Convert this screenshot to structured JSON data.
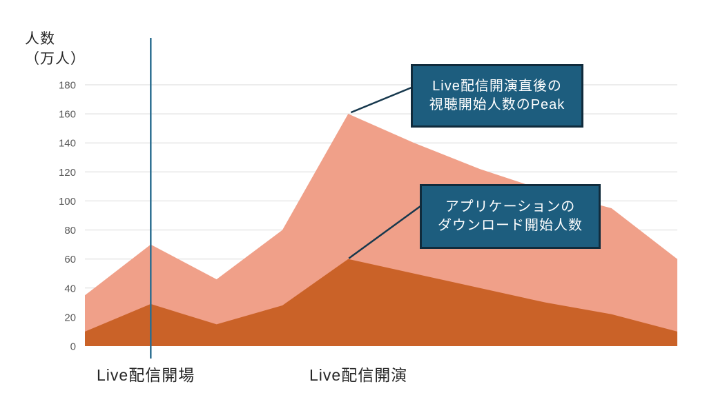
{
  "y_axis": {
    "title_line1": "人数",
    "title_line2": "（万人）"
  },
  "chart_data": {
    "type": "area",
    "title": "",
    "ylabel": "人数（万人）",
    "ylim": [
      0,
      180
    ],
    "yticks": [
      0,
      20,
      40,
      60,
      80,
      100,
      120,
      140,
      160,
      180
    ],
    "grid": "horizontal",
    "legend_position": "none",
    "x": [
      0,
      1,
      2,
      3,
      4,
      5,
      6,
      7,
      8,
      9
    ],
    "x_event_labels": [
      {
        "label": "Live配信開場",
        "x_index": 1
      },
      {
        "label": "Live配信開演",
        "x_index": 4
      }
    ],
    "event_line": {
      "x_index": 1
    },
    "series": [
      {
        "name": "視聴開始人数",
        "color": "#F0A089",
        "values": [
          35,
          70,
          46,
          80,
          160,
          140,
          122,
          107,
          95,
          60
        ]
      },
      {
        "name": "ダウンロード開始人数",
        "color": "#CA6228",
        "values": [
          10,
          29,
          15,
          28,
          60,
          50,
          40,
          30,
          22,
          10
        ]
      }
    ]
  },
  "annotations": [
    {
      "line1": "Live配信開演直後の",
      "line2": "視聴開始人数のPeak"
    },
    {
      "line1": "アプリケーションの",
      "line2": "ダウンロード開始人数"
    }
  ],
  "colors": {
    "background": "#FFFFFF",
    "area_viewers": "#F0A089",
    "area_downloads": "#CA6228",
    "callout_bg": "#1D5D7E",
    "callout_border": "#102B3C",
    "callout_text": "#FFFFFF",
    "leader_line": "#16384D",
    "event_line": "#2C6E91",
    "gridline": "#D9D9D9",
    "tick_label": "#595959",
    "axis_label": "#262626"
  }
}
